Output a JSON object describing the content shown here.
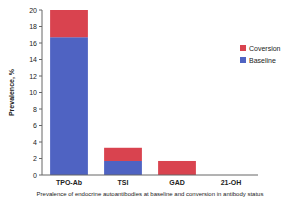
{
  "chart_data": {
    "type": "bar",
    "stacked": true,
    "title": "Prevalence of endocrine autoantibodies at baseline and conversion in antibody status",
    "y_label": "Prevalence, %",
    "categories": [
      "TPO-Ab",
      "TSI",
      "GAD",
      "21-OH"
    ],
    "series": [
      {
        "name": "Baseline",
        "color": "#4f63c2",
        "values": [
          16.7,
          1.7,
          0,
          0
        ]
      },
      {
        "name": "Coversion",
        "color": "#d9434f",
        "values": [
          3.3,
          1.6,
          1.7,
          0
        ]
      }
    ],
    "ylim": [
      0,
      20
    ],
    "yticks": [
      0,
      2,
      4,
      6,
      8,
      10,
      12,
      14,
      16,
      18,
      20
    ],
    "grid": false,
    "legend": "right"
  }
}
